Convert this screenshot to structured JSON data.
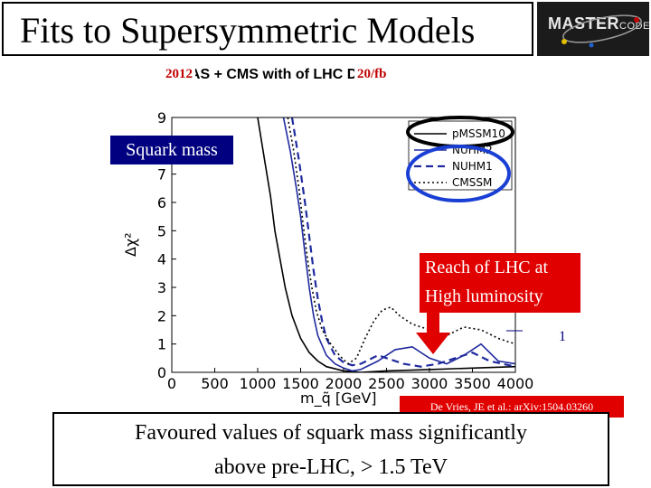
{
  "title": "Fits to Supersymmetric Models",
  "logo": {
    "main": "MASTER",
    "sub": "CODE"
  },
  "chart_header": "ATLAS + CMS with      of LHC Data",
  "overlay_year": "2012",
  "overlay_lumi": "20/fb",
  "callouts": {
    "squark": "Squark mass",
    "reach_line1": "Reach of LHC at",
    "reach_line2": "High luminosity",
    "one": "1"
  },
  "citation": "De Vries, JE et al.: arXiv:1504.03260",
  "conclusion_line1": "Favoured values of squark mass significantly",
  "conclusion_line2": "above pre-LHC, > 1.5 TeV",
  "colors": {
    "blue": "#1f2a9e",
    "black": "#000000",
    "red": "#e00000",
    "navy": "#000080"
  },
  "chart_data": {
    "type": "line",
    "xlabel": "m_q̃ [GeV]",
    "ylabel": "Δχ²",
    "xlim": [
      0,
      4000
    ],
    "ylim": [
      0,
      9
    ],
    "x_ticks": [
      0,
      500,
      1000,
      1500,
      2000,
      2500,
      3000,
      3500,
      4000
    ],
    "y_ticks": [
      0,
      1,
      2,
      3,
      4,
      5,
      6,
      7,
      8,
      9
    ],
    "legend_position": "top-right",
    "series": [
      {
        "name": "pMSSM10",
        "color": "#000000",
        "dash": "solid",
        "x": [
          1000,
          1080,
          1150,
          1200,
          1260,
          1320,
          1400,
          1500,
          1600,
          1700,
          1800,
          2000,
          2200,
          2500,
          3000,
          3500,
          4000
        ],
        "y": [
          9,
          7.5,
          6.2,
          5.0,
          4.0,
          3.0,
          2.0,
          1.2,
          0.7,
          0.4,
          0.2,
          0.05,
          0,
          0.05,
          0.1,
          0.15,
          0.2
        ]
      },
      {
        "name": "NUHM2",
        "color": "#1f2a9e",
        "dash": "solid",
        "x": [
          1300,
          1380,
          1450,
          1500,
          1550,
          1600,
          1650,
          1700,
          1800,
          1900,
          2000,
          2100,
          2200,
          2400,
          2600,
          2800,
          3000,
          3200,
          3400,
          3600,
          3800,
          4000
        ],
        "y": [
          9,
          7.8,
          6.5,
          5.5,
          4.2,
          3.0,
          2.0,
          1.3,
          0.6,
          0.3,
          0.15,
          0.05,
          0.1,
          0.4,
          0.8,
          0.9,
          0.5,
          0.3,
          0.6,
          1.0,
          0.4,
          0.3
        ]
      },
      {
        "name": "NUHM1",
        "color": "#1f2a9e",
        "dash": "dashed",
        "x": [
          1400,
          1480,
          1550,
          1600,
          1650,
          1700,
          1750,
          1800,
          1900,
          2000,
          2100,
          2200,
          2400,
          2500,
          2700,
          2900,
          3100,
          3300,
          3500,
          3700,
          4000
        ],
        "y": [
          9,
          7.5,
          6.0,
          4.8,
          3.6,
          2.6,
          1.8,
          1.2,
          0.6,
          0.35,
          0.25,
          0.3,
          0.6,
          0.5,
          0.3,
          0.2,
          0.3,
          0.5,
          0.7,
          0.4,
          0.2
        ]
      },
      {
        "name": "CMSSM",
        "color": "#000000",
        "dash": "dotted",
        "x": [
          1350,
          1420,
          1480,
          1530,
          1580,
          1630,
          1680,
          1750,
          1850,
          1950,
          2050,
          2150,
          2250,
          2350,
          2450,
          2550,
          2650,
          2800,
          3000,
          3200,
          3400,
          3600,
          3800,
          4000
        ],
        "y": [
          9,
          7.8,
          6.5,
          5.2,
          4.0,
          3.0,
          2.2,
          1.5,
          1.0,
          0.6,
          0.3,
          0.5,
          1.2,
          1.8,
          2.2,
          2.3,
          2.0,
          1.7,
          1.5,
          1.3,
          1.6,
          1.5,
          1.2,
          1.0
        ]
      }
    ]
  }
}
